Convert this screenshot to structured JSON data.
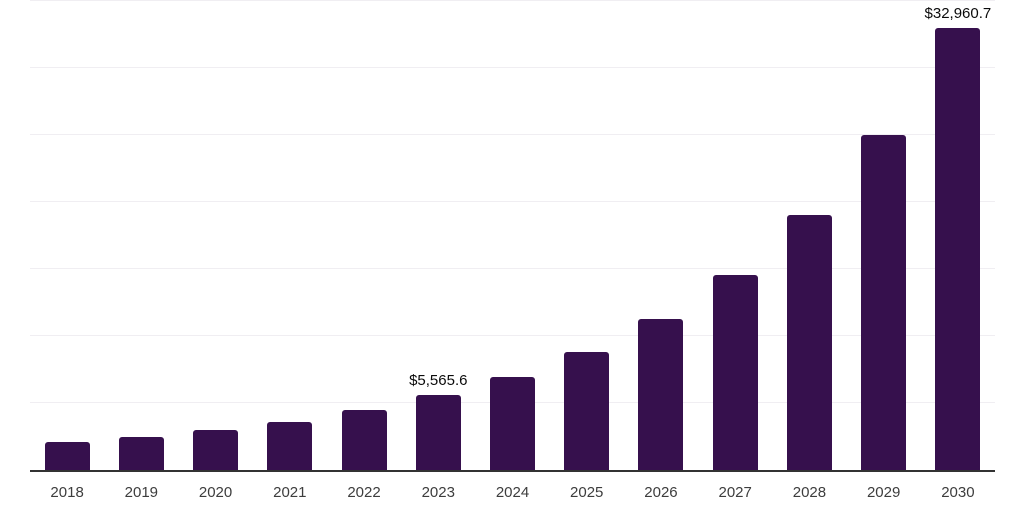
{
  "chart_data": {
    "type": "bar",
    "title": "",
    "xlabel": "",
    "ylabel": "",
    "categories": [
      "2018",
      "2019",
      "2020",
      "2021",
      "2022",
      "2023",
      "2024",
      "2025",
      "2026",
      "2027",
      "2028",
      "2029",
      "2030"
    ],
    "values": [
      2090,
      2460,
      2990,
      3580,
      4480,
      5565.6,
      6940,
      8810,
      11270,
      14550,
      19030,
      24980,
      32960.7
    ],
    "data_labels": [
      "",
      "",
      "",
      "",
      "",
      "$5,565.6",
      "",
      "",
      "",
      "",
      "",
      "",
      "$32,960.7"
    ],
    "ylim": [
      0,
      35000
    ],
    "gridline_step": 5000,
    "grid": true,
    "legend_position": "none"
  },
  "style": {
    "bar_color": "#36104d",
    "axis_line_color": "#333333",
    "gridline_color": "#f0eef2",
    "data_label_color": "#0b0b0b",
    "tick_label_color": "#3d3d3d",
    "background": "#ffffff"
  }
}
